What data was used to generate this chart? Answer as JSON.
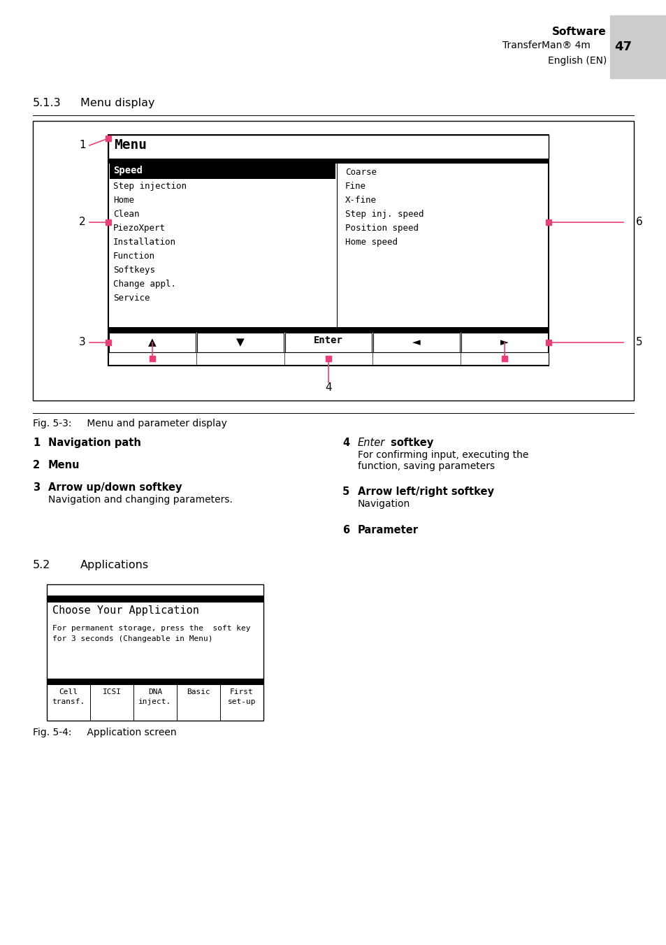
{
  "bg_color": "#ffffff",
  "header": {
    "title": "Software",
    "subtitle1": "TransferMan® 4m",
    "page_num": "47",
    "subtitle2": "English (EN)",
    "tab_color": "#cccccc"
  },
  "section_513": {
    "number": "5.1.3",
    "title": "Menu display"
  },
  "menu_items": [
    "Speed",
    "Step injection",
    "Home",
    "Clean",
    "PiezoXpert",
    "Installation",
    "Function",
    "Softkeys",
    "Change appl.",
    "Service"
  ],
  "param_items": [
    "Coarse",
    "Fine",
    "X-fine",
    "Step inj. speed",
    "Position speed",
    "Home speed"
  ],
  "softkeys": [
    "▲",
    "▼",
    "Enter",
    "◄",
    "►"
  ],
  "fig_caption1": "Fig. 5-3:     Menu and parameter display",
  "section_52": {
    "number": "5.2",
    "title": "Applications"
  },
  "app_title": "Choose Your Application",
  "app_body": "For permanent storage, press the  soft key\nfor 3 seconds (Changeable in Menu)",
  "app_softkeys": [
    "Cell\ntransf.",
    "ICSI",
    "DNA\ninject.",
    "Basic",
    "First\nset-up"
  ],
  "fig_caption2": "Fig. 5-4:     Application screen",
  "pink": "#e8417a"
}
